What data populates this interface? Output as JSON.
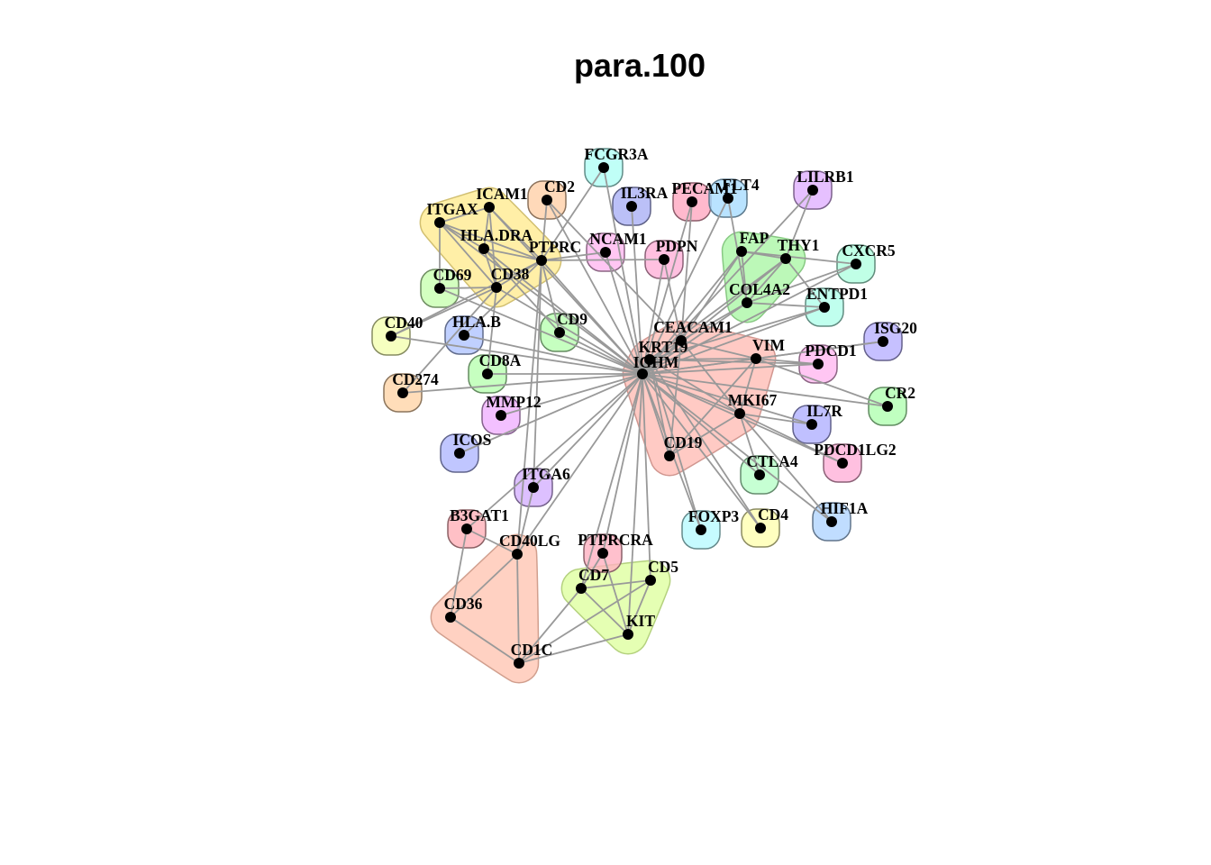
{
  "title": "para.100",
  "nodes": [
    {
      "id": "IGHM",
      "label": "IGHM"
    },
    {
      "id": "KRT19",
      "label": "KRT19"
    },
    {
      "id": "CEACAM1",
      "label": "CEACAM1"
    },
    {
      "id": "VIM",
      "label": "VIM"
    },
    {
      "id": "MKI67",
      "label": "MKI67"
    },
    {
      "id": "CD19",
      "label": "CD19"
    },
    {
      "id": "ITGAX",
      "label": "ITGAX"
    },
    {
      "id": "ICAM1",
      "label": "ICAM1"
    },
    {
      "id": "HLA.DRA",
      "label": "HLA.DRA"
    },
    {
      "id": "PTPRC",
      "label": "PTPRC"
    },
    {
      "id": "CD38",
      "label": "CD38"
    },
    {
      "id": "FAP",
      "label": "FAP"
    },
    {
      "id": "THY1",
      "label": "THY1"
    },
    {
      "id": "COL4A2",
      "label": "COL4A2"
    },
    {
      "id": "CD40LG",
      "label": "CD40LG"
    },
    {
      "id": "CD36",
      "label": "CD36"
    },
    {
      "id": "CD1C",
      "label": "CD1C"
    },
    {
      "id": "CD7",
      "label": "CD7"
    },
    {
      "id": "CD5",
      "label": "CD5"
    },
    {
      "id": "KIT",
      "label": "KIT"
    },
    {
      "id": "FCGR3A",
      "label": "FCGR3A"
    },
    {
      "id": "CD2",
      "label": "CD2"
    },
    {
      "id": "IL3RA",
      "label": "IL3RA"
    },
    {
      "id": "PECAM1",
      "label": "PECAM1"
    },
    {
      "id": "FLT4",
      "label": "FLT4"
    },
    {
      "id": "LILRB1",
      "label": "LILRB1"
    },
    {
      "id": "NCAM1",
      "label": "NCAM1"
    },
    {
      "id": "PDPN",
      "label": "PDPN"
    },
    {
      "id": "CXCR5",
      "label": "CXCR5"
    },
    {
      "id": "ENTPD1",
      "label": "ENTPD1"
    },
    {
      "id": "ISG20",
      "label": "ISG20"
    },
    {
      "id": "PDCD1",
      "label": "PDCD1"
    },
    {
      "id": "CR2",
      "label": "CR2"
    },
    {
      "id": "IL7R",
      "label": "IL7R"
    },
    {
      "id": "PDCD1LG2",
      "label": "PDCD1LG2"
    },
    {
      "id": "CTLA4",
      "label": "CTLA4"
    },
    {
      "id": "HIF1A",
      "label": "HIF1A"
    },
    {
      "id": "CD4",
      "label": "CD4"
    },
    {
      "id": "FOXP3",
      "label": "FOXP3"
    },
    {
      "id": "PTPRCRA",
      "label": "PTPRCRA"
    },
    {
      "id": "B3GAT1",
      "label": "B3GAT1"
    },
    {
      "id": "ITGA6",
      "label": "ITGA6"
    },
    {
      "id": "ICOS",
      "label": "ICOS"
    },
    {
      "id": "MMP12",
      "label": "MMP12"
    },
    {
      "id": "CD274",
      "label": "CD274"
    },
    {
      "id": "CD8A",
      "label": "CD8A"
    },
    {
      "id": "CD40",
      "label": "CD40"
    },
    {
      "id": "HLA.B",
      "label": "HLA.B"
    },
    {
      "id": "CD9",
      "label": "CD9"
    },
    {
      "id": "CD69",
      "label": "CD69"
    }
  ],
  "edges": [
    [
      "IGHM",
      "KRT19"
    ],
    [
      "IGHM",
      "CEACAM1"
    ],
    [
      "IGHM",
      "VIM"
    ],
    [
      "IGHM",
      "MKI67"
    ],
    [
      "IGHM",
      "CD19"
    ],
    [
      "IGHM",
      "FCGR3A"
    ],
    [
      "IGHM",
      "CD2"
    ],
    [
      "IGHM",
      "IL3RA"
    ],
    [
      "IGHM",
      "PECAM1"
    ],
    [
      "IGHM",
      "FLT4"
    ],
    [
      "IGHM",
      "NCAM1"
    ],
    [
      "IGHM",
      "PDPN"
    ],
    [
      "IGHM",
      "PTPRC"
    ],
    [
      "IGHM",
      "HLA.DRA"
    ],
    [
      "IGHM",
      "ICAM1"
    ],
    [
      "IGHM",
      "ITGAX"
    ],
    [
      "IGHM",
      "CD38"
    ],
    [
      "IGHM",
      "CD69"
    ],
    [
      "IGHM",
      "CD40"
    ],
    [
      "IGHM",
      "HLA.B"
    ],
    [
      "IGHM",
      "CD9"
    ],
    [
      "IGHM",
      "CD8A"
    ],
    [
      "IGHM",
      "CD274"
    ],
    [
      "IGHM",
      "MMP12"
    ],
    [
      "IGHM",
      "ICOS"
    ],
    [
      "IGHM",
      "ITGA6"
    ],
    [
      "IGHM",
      "B3GAT1"
    ],
    [
      "IGHM",
      "CD40LG"
    ],
    [
      "IGHM",
      "PTPRCRA"
    ],
    [
      "IGHM",
      "CD7"
    ],
    [
      "IGHM",
      "KIT"
    ],
    [
      "IGHM",
      "CD5"
    ],
    [
      "IGHM",
      "FOXP3"
    ],
    [
      "IGHM",
      "CD4"
    ],
    [
      "IGHM",
      "CTLA4"
    ],
    [
      "IGHM",
      "PDCD1"
    ],
    [
      "IGHM",
      "ISG20"
    ],
    [
      "IGHM",
      "COL4A2"
    ],
    [
      "IGHM",
      "FAP"
    ],
    [
      "IGHM",
      "THY1"
    ],
    [
      "IGHM",
      "ENTPD1"
    ],
    [
      "IGHM",
      "CXCR5"
    ],
    [
      "IGHM",
      "CR2"
    ],
    [
      "IGHM",
      "IL7R"
    ],
    [
      "IGHM",
      "PDCD1LG2"
    ],
    [
      "IGHM",
      "HIF1A"
    ],
    [
      "IGHM",
      "LILRB1"
    ],
    [
      "KRT19",
      "CEACAM1"
    ],
    [
      "KRT19",
      "VIM"
    ],
    [
      "KRT19",
      "MKI67"
    ],
    [
      "KRT19",
      "CD19"
    ],
    [
      "KRT19",
      "CD4"
    ],
    [
      "KRT19",
      "FOXP3"
    ],
    [
      "KRT19",
      "ENTPD1"
    ],
    [
      "KRT19",
      "THY1"
    ],
    [
      "KRT19",
      "PDCD1"
    ],
    [
      "CEACAM1",
      "VIM"
    ],
    [
      "CEACAM1",
      "MKI67"
    ],
    [
      "CEACAM1",
      "CD19"
    ],
    [
      "CEACAM1",
      "PECAM1"
    ],
    [
      "CEACAM1",
      "PDPN"
    ],
    [
      "CEACAM1",
      "CD2"
    ],
    [
      "CEACAM1",
      "FAP"
    ],
    [
      "CEACAM1",
      "COL4A2"
    ],
    [
      "VIM",
      "MKI67"
    ],
    [
      "VIM",
      "CD19"
    ],
    [
      "VIM",
      "ISG20"
    ],
    [
      "VIM",
      "CR2"
    ],
    [
      "VIM",
      "PDCD1"
    ],
    [
      "MKI67",
      "CD19"
    ],
    [
      "MKI67",
      "CTLA4"
    ],
    [
      "MKI67",
      "IL7R"
    ],
    [
      "MKI67",
      "PDCD1LG2"
    ],
    [
      "MKI67",
      "HIF1A"
    ],
    [
      "ITGAX",
      "ICAM1"
    ],
    [
      "ITGAX",
      "HLA.DRA"
    ],
    [
      "ITGAX",
      "PTPRC"
    ],
    [
      "ITGAX",
      "CD38"
    ],
    [
      "ITGAX",
      "CD69"
    ],
    [
      "ICAM1",
      "HLA.DRA"
    ],
    [
      "ICAM1",
      "PTPRC"
    ],
    [
      "ICAM1",
      "CD38"
    ],
    [
      "HLA.DRA",
      "PTPRC"
    ],
    [
      "HLA.DRA",
      "CD38"
    ],
    [
      "HLA.DRA",
      "CD9"
    ],
    [
      "PTPRC",
      "CD38"
    ],
    [
      "PTPRC",
      "CD2"
    ],
    [
      "PTPRC",
      "NCAM1"
    ],
    [
      "PTPRC",
      "FCGR3A"
    ],
    [
      "PTPRC",
      "CD9"
    ],
    [
      "PTPRC",
      "HLA.B"
    ],
    [
      "PTPRC",
      "CD40"
    ],
    [
      "PTPRC",
      "PDPN"
    ],
    [
      "PTPRC",
      "ITGA6"
    ],
    [
      "CD38",
      "CD69"
    ],
    [
      "CD38",
      "CD8A"
    ],
    [
      "CD38",
      "CD40"
    ],
    [
      "CD38",
      "CD274"
    ],
    [
      "FAP",
      "THY1"
    ],
    [
      "FAP",
      "COL4A2"
    ],
    [
      "THY1",
      "COL4A2"
    ],
    [
      "FAP",
      "CXCR5"
    ],
    [
      "THY1",
      "LILRB1"
    ],
    [
      "THY1",
      "ENTPD1"
    ],
    [
      "COL4A2",
      "ENTPD1"
    ],
    [
      "COL4A2",
      "CXCR5"
    ],
    [
      "COL4A2",
      "FLT4"
    ],
    [
      "CD40LG",
      "CD36"
    ],
    [
      "CD40LG",
      "CD1C"
    ],
    [
      "CD36",
      "CD1C"
    ],
    [
      "CD40LG",
      "B3GAT1"
    ],
    [
      "CD40LG",
      "ITGA6"
    ],
    [
      "CD7",
      "CD5"
    ],
    [
      "CD7",
      "KIT"
    ],
    [
      "CD5",
      "KIT"
    ],
    [
      "CD1C",
      "CD7"
    ],
    [
      "CD1C",
      "CD5"
    ],
    [
      "CD1C",
      "KIT"
    ],
    [
      "PTPRCRA",
      "KIT"
    ],
    [
      "PTPRCRA",
      "CD7"
    ],
    [
      "B3GAT1",
      "CD36"
    ],
    [
      "CD40LG",
      "PTPRC"
    ]
  ],
  "groups": [
    {
      "members": [
        "ITGAX",
        "ICAM1",
        "HLA.DRA",
        "PTPRC",
        "CD38"
      ],
      "color": "#ffe98a"
    },
    {
      "members": [
        "FAP",
        "THY1",
        "COL4A2"
      ],
      "color": "#a6f5a0"
    },
    {
      "members": [
        "IGHM",
        "KRT19",
        "CEACAM1",
        "VIM",
        "MKI67",
        "CD19"
      ],
      "color": "#ffb8b0"
    },
    {
      "members": [
        "CD40LG",
        "CD36",
        "CD1C"
      ],
      "color": "#ffc2ad"
    },
    {
      "members": [
        "CD7",
        "CD5",
        "KIT"
      ],
      "color": "#dcff9a"
    }
  ],
  "single_colors": {
    "FCGR3A": "#b0fff5",
    "CD2": "#ffcfa8",
    "IL3RA": "#aab0f5",
    "PECAM1": "#ffa8c0",
    "FLT4": "#a8dcff",
    "LILRB1": "#e0b0ff",
    "NCAM1": "#ffb8f0",
    "PDPN": "#ffb0d8",
    "CXCR5": "#b0ffe0",
    "ENTPD1": "#b0ffea",
    "ISG20": "#b8b0ff",
    "PDCD1": "#ffb8f0",
    "CR2": "#b0ffb0",
    "IL7R": "#b0b0ff",
    "PDCD1LG2": "#ffb0d8",
    "CTLA4": "#b8ffc8",
    "HIF1A": "#b0d4ff",
    "CD4": "#ffffb0",
    "FOXP3": "#b8faff",
    "PTPRCRA": "#ffb0c0",
    "B3GAT1": "#ffb0b8",
    "ITGA6": "#d4b0ff",
    "ICOS": "#b0b8ff",
    "MMP12": "#f0b0ff",
    "CD274": "#ffd4a8",
    "CD8A": "#b8ffb0",
    "CD40": "#f4ffb0",
    "HLA.B": "#b0c4ff",
    "CD9": "#b8ffb0",
    "CD69": "#c8ffb0"
  }
}
